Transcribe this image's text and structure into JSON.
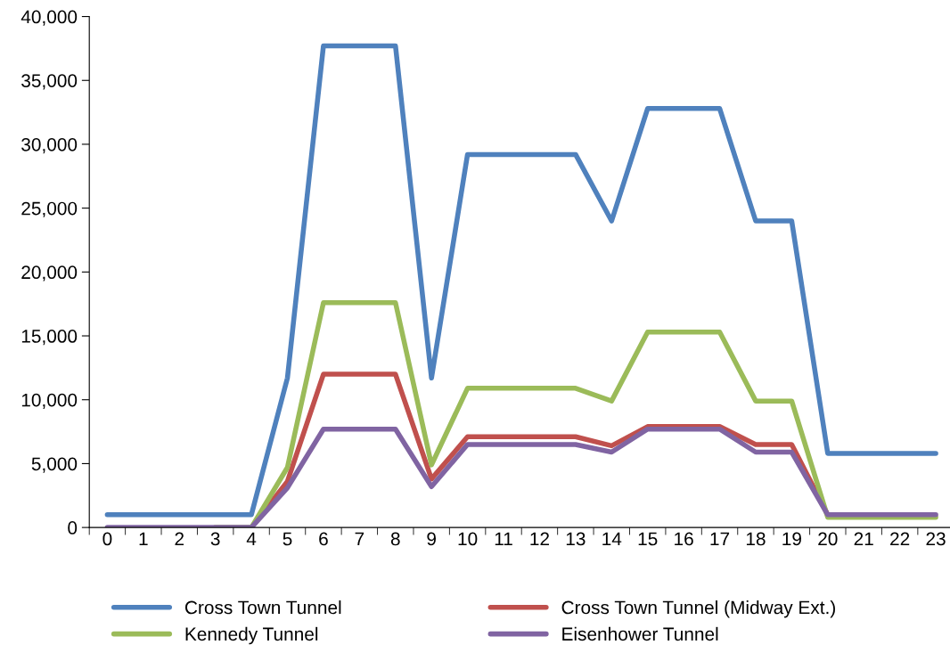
{
  "chart_data": {
    "type": "line",
    "categories": [
      "0",
      "1",
      "2",
      "3",
      "4",
      "5",
      "6",
      "7",
      "8",
      "9",
      "10",
      "11",
      "12",
      "13",
      "14",
      "15",
      "16",
      "17",
      "18",
      "19",
      "20",
      "21",
      "22",
      "23"
    ],
    "series": [
      {
        "name": "Cross Town Tunnel",
        "color": "#4f81bd",
        "values": [
          1000,
          1000,
          1000,
          1000,
          1000,
          11700,
          37700,
          37700,
          37700,
          11700,
          29200,
          29200,
          29200,
          29200,
          24000,
          32800,
          32800,
          32800,
          24000,
          24000,
          5800,
          5800,
          5800,
          5800
        ]
      },
      {
        "name": "Cross Town Tunnel (Midway Ext.)",
        "color": "#c0504d",
        "values": [
          null,
          null,
          null,
          0,
          0,
          3600,
          12000,
          12000,
          12000,
          3800,
          7100,
          7100,
          7100,
          7100,
          6400,
          7900,
          7900,
          7900,
          6500,
          6500,
          1000,
          1000,
          null,
          null
        ]
      },
      {
        "name": "Kennedy Tunnel",
        "color": "#9bbb59",
        "values": [
          null,
          null,
          null,
          0,
          0,
          4700,
          17600,
          17600,
          17600,
          4900,
          10900,
          10900,
          10900,
          10900,
          9900,
          15300,
          15300,
          15300,
          9900,
          9900,
          800,
          800,
          800,
          800
        ]
      },
      {
        "name": "Eisenhower Tunnel",
        "color": "#8064a2",
        "values": [
          0,
          0,
          0,
          0,
          0,
          3100,
          7700,
          7700,
          7700,
          3200,
          6500,
          6500,
          6500,
          6500,
          5900,
          7700,
          7700,
          7700,
          5900,
          5900,
          1000,
          1000,
          1000,
          1000
        ]
      }
    ],
    "ylim": [
      0,
      40000
    ],
    "yticks": [
      0,
      {
        "value": 5000,
        "label": "5,000"
      },
      {
        "value": 10000,
        "label": "10,000"
      },
      {
        "value": 15000,
        "label": "15,000"
      },
      {
        "value": 20000,
        "label": "20,000"
      },
      {
        "value": 25000,
        "label": "25,000"
      },
      {
        "value": 30000,
        "label": "30,000"
      },
      {
        "value": 35000,
        "label": "35,000"
      },
      {
        "value": 40000,
        "label": "40,000"
      }
    ],
    "grid": false,
    "legend": "bottom",
    "marker": "none",
    "line_style": "solid"
  }
}
